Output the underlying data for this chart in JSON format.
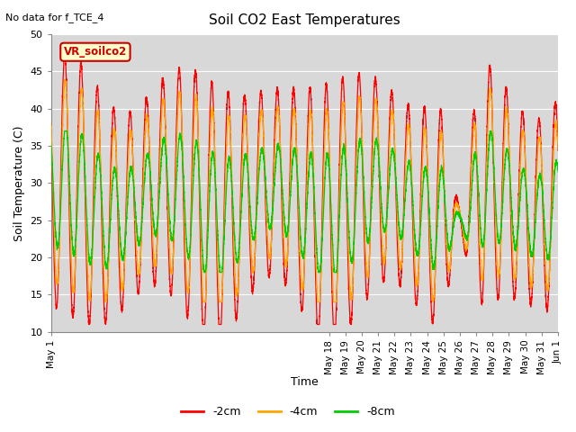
{
  "title": "Soil CO2 East Temperatures",
  "subtitle": "No data for f_TCE_4",
  "xlabel": "Time",
  "ylabel": "Soil Temperature (C)",
  "ylim": [
    10,
    50
  ],
  "annotation": "VR_soilco2",
  "legend": [
    "-2cm",
    "-4cm",
    "-8cm"
  ],
  "legend_colors": [
    "#ff0000",
    "#ffa500",
    "#00cc00"
  ],
  "bg_color": "#d8d8d8",
  "line_colors": [
    "#ff0000",
    "#ffa500",
    "#00cc00"
  ],
  "xtick_labels": [
    "May 1",
    "May 18",
    "May 19",
    "May 20",
    "May 21",
    "May 22",
    "May 23",
    "May 24",
    "May 25",
    "May 26",
    "May 27",
    "May 28",
    "May 29",
    "May 30",
    "May 31",
    "Jun 1"
  ],
  "n_days": 31
}
